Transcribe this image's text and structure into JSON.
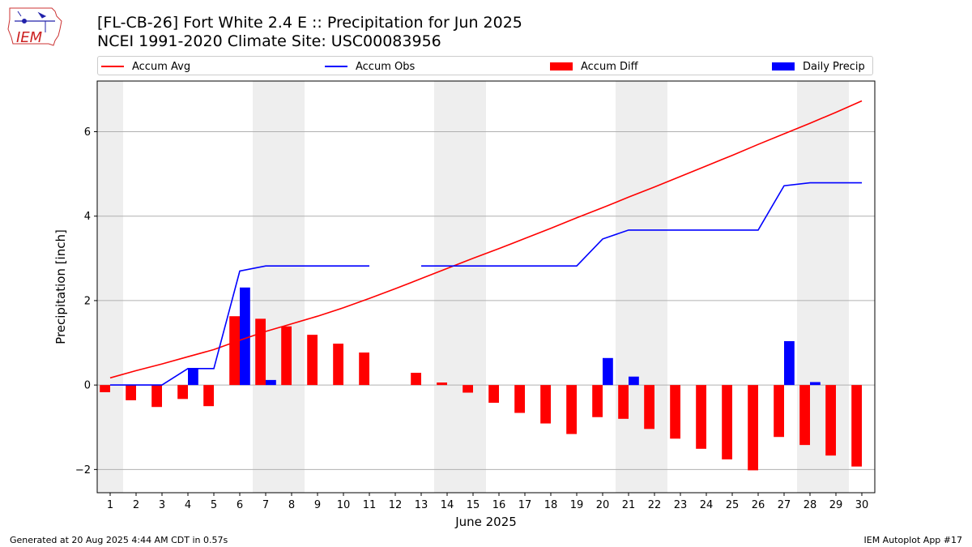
{
  "header": {
    "title": "[FL-CB-26] Fort White 2.4 E :: Precipitation for Jun 2025",
    "subtitle": "NCEI 1991-2020 Climate Site: USC00083956",
    "logo_text": "IEM"
  },
  "footer": {
    "left": "Generated at 20 Aug 2025 4:44 AM CDT in 0.57s",
    "right": "IEM Autoplot App #17"
  },
  "legend": [
    {
      "label": "Accum Avg",
      "kind": "line",
      "color": "#ff0000"
    },
    {
      "label": "Accum Obs",
      "kind": "line",
      "color": "#0000ff"
    },
    {
      "label": "Accum Diff",
      "kind": "patch",
      "color": "#ff0000"
    },
    {
      "label": "Daily Precip",
      "kind": "patch",
      "color": "#0000ff"
    }
  ],
  "chart_data": {
    "type": "bar",
    "xlabel": "June 2025",
    "ylabel": "Precipitation [inch]",
    "xlim": [
      0.5,
      30.5
    ],
    "ylim": [
      -2.55,
      7.2
    ],
    "yticks": [
      -2,
      0,
      2,
      4,
      6
    ],
    "ytick_labels": [
      "−2",
      "0",
      "2",
      "4",
      "6"
    ],
    "grid": "horizontal",
    "legend_position": "top",
    "weekend_shading": [
      [
        0.5,
        1.5
      ],
      [
        6.5,
        8.5
      ],
      [
        13.5,
        15.5
      ],
      [
        20.5,
        22.5
      ],
      [
        27.5,
        29.5
      ]
    ],
    "x": [
      1,
      2,
      3,
      4,
      5,
      6,
      7,
      8,
      9,
      10,
      11,
      12,
      13,
      14,
      15,
      16,
      17,
      18,
      19,
      20,
      21,
      22,
      23,
      24,
      25,
      26,
      27,
      28,
      29,
      30
    ],
    "xtick_labels": [
      "1",
      "2",
      "3",
      "4",
      "5",
      "6",
      "7",
      "8",
      "9",
      "10",
      "11",
      "12",
      "13",
      "14",
      "15",
      "16",
      "17",
      "18",
      "19",
      "20",
      "21",
      "22",
      "23",
      "24",
      "25",
      "26",
      "27",
      "28",
      "29",
      "30"
    ],
    "series": [
      {
        "name": "Accum Avg",
        "type": "line",
        "color": "#ff0000",
        "values": [
          0.17,
          0.34,
          0.5,
          0.67,
          0.84,
          1.06,
          1.27,
          1.45,
          1.63,
          1.83,
          2.05,
          2.28,
          2.52,
          2.76,
          3.0,
          3.23,
          3.47,
          3.71,
          3.96,
          4.2,
          4.45,
          4.69,
          4.94,
          5.19,
          5.44,
          5.7,
          5.95,
          6.2,
          6.46,
          6.73
        ]
      },
      {
        "name": "Accum Obs",
        "type": "line",
        "color": "#0000ff",
        "values": [
          0.0,
          0.0,
          0.0,
          0.39,
          0.39,
          2.7,
          2.82,
          2.82,
          2.82,
          2.82,
          2.82,
          null,
          2.82,
          2.82,
          2.82,
          2.82,
          2.82,
          2.82,
          2.82,
          3.46,
          3.67,
          3.67,
          3.67,
          3.67,
          3.67,
          3.67,
          4.72,
          4.79,
          4.79,
          4.79
        ]
      },
      {
        "name": "Accum Diff",
        "type": "bar",
        "color": "#ff0000",
        "values": [
          -0.17,
          -0.36,
          -0.52,
          -0.33,
          -0.5,
          1.63,
          1.57,
          1.39,
          1.19,
          0.98,
          0.77,
          null,
          0.29,
          0.06,
          -0.18,
          -0.42,
          -0.66,
          -0.91,
          -1.16,
          -0.76,
          -0.8,
          -1.04,
          -1.27,
          -1.51,
          -1.76,
          -2.02,
          -1.23,
          -1.42,
          -1.67,
          -1.93
        ]
      },
      {
        "name": "Daily Precip",
        "type": "bar",
        "color": "#0000ff",
        "values": [
          0,
          0,
          0,
          0.39,
          0,
          2.31,
          0.12,
          0,
          0,
          0,
          0,
          null,
          0,
          0,
          0,
          0,
          0,
          0,
          0,
          0.64,
          0.2,
          0,
          0,
          0,
          0,
          0,
          1.04,
          0.07,
          0,
          0
        ]
      }
    ]
  }
}
